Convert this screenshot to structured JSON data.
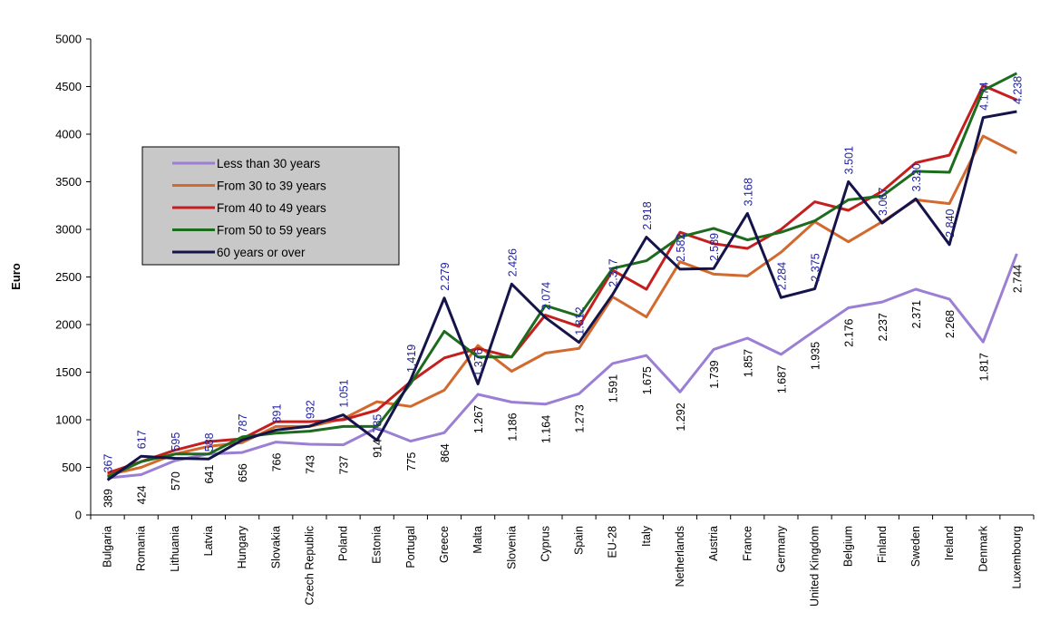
{
  "chart_data": {
    "type": "line",
    "title": "",
    "xlabel": "",
    "ylabel": "Euro",
    "ylim": [
      0,
      5000
    ],
    "yticks": [
      0,
      500,
      1000,
      1500,
      2000,
      2500,
      3000,
      3500,
      4000,
      4500,
      5000
    ],
    "grid": false,
    "legend_position": "top-left",
    "categories": [
      "Bulgaria",
      "Romania",
      "Lithuania",
      "Latvia",
      "Hungary",
      "Slovakia",
      "Czech Republic",
      "Poland",
      "Estonia",
      "Portugal",
      "Greece",
      "Malta",
      "Slovenia",
      "Cyprus",
      "Spain",
      "EU-28",
      "Italy",
      "Netherlands",
      "Austria",
      "France",
      "Germany",
      "United Kingdom",
      "Belgium",
      "Finland",
      "Sweden",
      "Ireland",
      "Denmark",
      "Luxembourg"
    ],
    "series": [
      {
        "name": "Less than 30 years",
        "color": "#9b7fd4",
        "values": [
          389,
          424,
          570,
          641,
          656,
          766,
          743,
          737,
          914,
          775,
          864,
          1267,
          1186,
          1164,
          1273,
          1591,
          1675,
          1292,
          1739,
          1857,
          1687,
          1935,
          2176,
          2237,
          2371,
          2268,
          1817,
          2744
        ]
      },
      {
        "name": "From 30 to 39 years",
        "color": "#d2692e",
        "values": [
          420,
          500,
          640,
          720,
          760,
          930,
          930,
          1010,
          1190,
          1140,
          1310,
          1780,
          1510,
          1700,
          1750,
          2290,
          2080,
          2660,
          2530,
          2510,
          2760,
          3080,
          2870,
          3080,
          3310,
          3270,
          3980,
          3800
        ]
      },
      {
        "name": "From 40 to 49 years",
        "color": "#c41e1e",
        "values": [
          440,
          560,
          680,
          770,
          800,
          980,
          980,
          1000,
          1100,
          1400,
          1650,
          1750,
          1660,
          2100,
          1980,
          2570,
          2370,
          2970,
          2850,
          2800,
          3000,
          3290,
          3200,
          3400,
          3700,
          3780,
          4510,
          4360
        ]
      },
      {
        "name": "From 50 to 59 years",
        "color": "#1d6b1d",
        "values": [
          400,
          560,
          640,
          640,
          820,
          860,
          880,
          930,
          930,
          1380,
          1930,
          1660,
          1660,
          2200,
          2090,
          2590,
          2670,
          2920,
          3010,
          2890,
          2970,
          3090,
          3310,
          3350,
          3610,
          3600,
          4460,
          4640
        ]
      },
      {
        "name": "60 years or over",
        "color": "#14144a",
        "values": [
          367,
          617,
          595,
          588,
          787,
          891,
          932,
          1051,
          785,
          1419,
          2279,
          1376,
          2426,
          2074,
          1812,
          2317,
          2918,
          2582,
          2589,
          3168,
          2284,
          2375,
          3501,
          3067,
          3320,
          2840,
          4174,
          4238
        ]
      }
    ],
    "data_labels": {
      "less_than_30": [
        "389",
        "424",
        "570",
        "641",
        "656",
        "766",
        "743",
        "737",
        "914",
        "775",
        "864",
        "1.267",
        "1.186",
        "1.164",
        "1.273",
        "1.591",
        "1.675",
        "1.292",
        "1.739",
        "1.857",
        "1.687",
        "1.935",
        "2.176",
        "2.237",
        "2.371",
        "2.268",
        "1.817",
        "2.744"
      ],
      "sixty_or_over": [
        "367",
        "617",
        "595",
        "588",
        "787",
        "891",
        "932",
        "1.051",
        "785",
        "1.419",
        "2.279",
        "1.376",
        "2.426",
        "2.074",
        "1.812",
        "2.317",
        "2.918",
        "2.582",
        "2.589",
        "3.168",
        "2.284",
        "2.375",
        "3.501",
        "3.067",
        "3.320",
        "2.840",
        "4.174",
        "4.238"
      ],
      "less_than_30_color": "#000000",
      "sixty_or_over_color": "#1f1f9f"
    },
    "legend_background": "#c8c8c8"
  }
}
